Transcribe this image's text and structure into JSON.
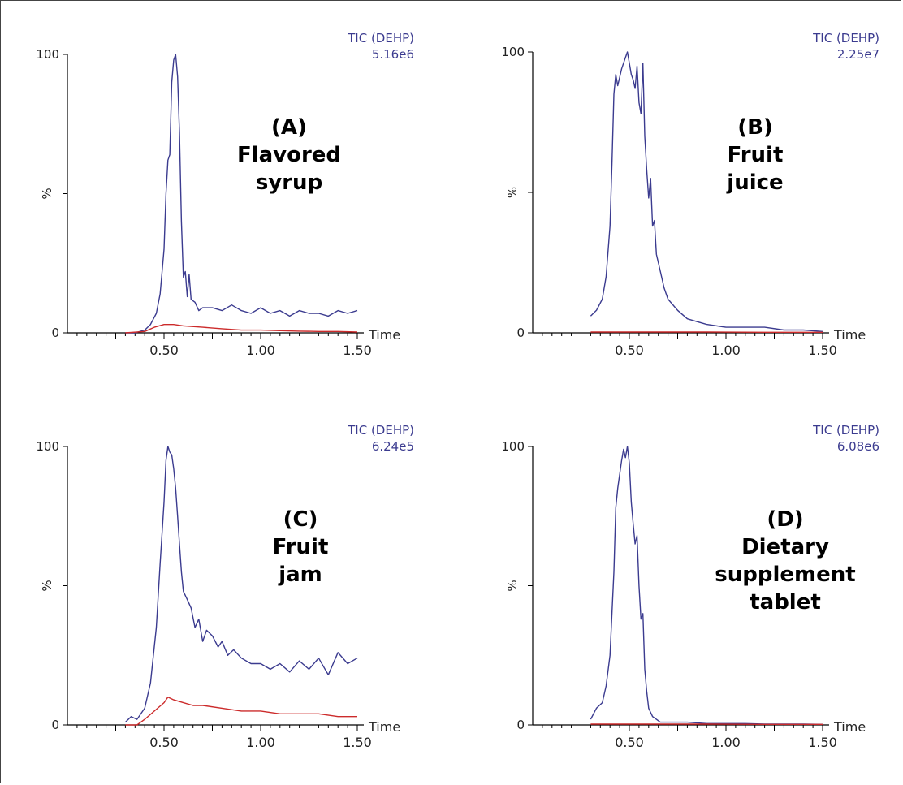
{
  "chart_data": [
    {
      "id": "A",
      "type": "line",
      "trace_label": "TIC (DEHP)",
      "intensity": "5.16e6",
      "caption": [
        "(A)",
        "Flavored",
        "syrup"
      ],
      "xlabel": "Time",
      "ylabel": "%",
      "xlim": [
        0.0,
        1.5
      ],
      "ylim": [
        0,
        100
      ],
      "xticks": [
        "0.50",
        "1.00",
        "1.50"
      ],
      "yticks": [
        "0",
        "100"
      ],
      "series": [
        {
          "color": "#3b3b8f",
          "x": [
            0.3,
            0.35,
            0.4,
            0.43,
            0.46,
            0.48,
            0.5,
            0.51,
            0.52,
            0.53,
            0.54,
            0.55,
            0.56,
            0.57,
            0.58,
            0.59,
            0.6,
            0.61,
            0.62,
            0.63,
            0.64,
            0.66,
            0.68,
            0.7,
            0.75,
            0.8,
            0.85,
            0.9,
            0.95,
            1.0,
            1.05,
            1.1,
            1.15,
            1.2,
            1.25,
            1.3,
            1.35,
            1.4,
            1.45,
            1.5
          ],
          "y": [
            0,
            0,
            1,
            3,
            7,
            14,
            30,
            50,
            62,
            64,
            90,
            98,
            100,
            92,
            72,
            40,
            20,
            22,
            13,
            21,
            12,
            11,
            8,
            9,
            9,
            8,
            10,
            8,
            7,
            9,
            7,
            8,
            6,
            8,
            7,
            7,
            6,
            8,
            7,
            8
          ]
        },
        {
          "color": "#cc2b2b",
          "x": [
            0.3,
            0.4,
            0.45,
            0.5,
            0.55,
            0.6,
            0.7,
            0.8,
            0.9,
            1.0,
            1.1,
            1.2,
            1.3,
            1.4,
            1.5
          ],
          "y": [
            0,
            0.5,
            2,
            3,
            3,
            2.5,
            2,
            1.5,
            1,
            1,
            0.8,
            0.6,
            0.5,
            0.5,
            0.3
          ]
        }
      ]
    },
    {
      "id": "B",
      "type": "line",
      "trace_label": "TIC (DEHP)",
      "intensity": "2.25e7",
      "caption": [
        "(B)",
        "Fruit",
        "juice"
      ],
      "xlabel": "Time",
      "ylabel": "%",
      "xlim": [
        0.0,
        1.5
      ],
      "ylim": [
        0,
        100
      ],
      "xticks": [
        "0.50",
        "1.00",
        "1.50"
      ],
      "yticks": [
        "0",
        "100"
      ],
      "series": [
        {
          "color": "#3b3b8f",
          "x": [
            0.3,
            0.33,
            0.36,
            0.38,
            0.4,
            0.41,
            0.42,
            0.43,
            0.44,
            0.46,
            0.48,
            0.49,
            0.5,
            0.51,
            0.52,
            0.53,
            0.54,
            0.55,
            0.56,
            0.57,
            0.58,
            0.59,
            0.6,
            0.61,
            0.62,
            0.63,
            0.64,
            0.66,
            0.68,
            0.7,
            0.75,
            0.8,
            0.85,
            0.9,
            1.0,
            1.1,
            1.2,
            1.3,
            1.4,
            1.5
          ],
          "y": [
            6,
            8,
            12,
            20,
            38,
            60,
            85,
            92,
            88,
            94,
            98,
            100,
            96,
            92,
            90,
            87,
            95,
            82,
            78,
            96,
            70,
            58,
            48,
            55,
            38,
            40,
            28,
            22,
            16,
            12,
            8,
            5,
            4,
            3,
            2,
            2,
            2,
            1,
            1,
            0.5
          ]
        },
        {
          "color": "#cc2b2b",
          "x": [
            0.3,
            0.6,
            0.9,
            1.2,
            1.5
          ],
          "y": [
            0.3,
            0.3,
            0.3,
            0.2,
            0.2
          ]
        }
      ]
    },
    {
      "id": "C",
      "type": "line",
      "trace_label": "TIC (DEHP)",
      "intensity": "6.24e5",
      "caption": [
        "(C)",
        "Fruit",
        "jam"
      ],
      "xlabel": "Time",
      "ylabel": "%",
      "xlim": [
        0.0,
        1.5
      ],
      "ylim": [
        0,
        100
      ],
      "xticks": [
        "0.50",
        "1.00",
        "1.50"
      ],
      "yticks": [
        "0",
        "100"
      ],
      "series": [
        {
          "color": "#3b3b8f",
          "x": [
            0.3,
            0.33,
            0.36,
            0.4,
            0.43,
            0.46,
            0.48,
            0.5,
            0.51,
            0.52,
            0.53,
            0.54,
            0.55,
            0.56,
            0.57,
            0.58,
            0.59,
            0.6,
            0.62,
            0.64,
            0.66,
            0.68,
            0.7,
            0.72,
            0.75,
            0.78,
            0.8,
            0.83,
            0.86,
            0.9,
            0.95,
            1.0,
            1.05,
            1.1,
            1.15,
            1.2,
            1.25,
            1.3,
            1.35,
            1.4,
            1.45,
            1.5
          ],
          "y": [
            1,
            3,
            2,
            6,
            15,
            35,
            58,
            80,
            95,
            100,
            98,
            97,
            92,
            85,
            75,
            65,
            55,
            48,
            45,
            42,
            35,
            38,
            30,
            34,
            32,
            28,
            30,
            25,
            27,
            24,
            22,
            22,
            20,
            22,
            19,
            23,
            20,
            24,
            18,
            26,
            22,
            24
          ]
        },
        {
          "color": "#cc2b2b",
          "x": [
            0.3,
            0.36,
            0.4,
            0.45,
            0.5,
            0.52,
            0.55,
            0.6,
            0.65,
            0.7,
            0.8,
            0.9,
            1.0,
            1.1,
            1.2,
            1.3,
            1.4,
            1.5
          ],
          "y": [
            0,
            0,
            2,
            5,
            8,
            10,
            9,
            8,
            7,
            7,
            6,
            5,
            5,
            4,
            4,
            4,
            3,
            3
          ]
        }
      ]
    },
    {
      "id": "D",
      "type": "line",
      "trace_label": "TIC (DEHP)",
      "intensity": "6.08e6",
      "caption": [
        "(D)",
        "Dietary",
        "supplement",
        "tablet"
      ],
      "xlabel": "Time",
      "ylabel": "%",
      "xlim": [
        0.0,
        1.5
      ],
      "ylim": [
        0,
        100
      ],
      "xticks": [
        "0.50",
        "1.00",
        "1.50"
      ],
      "yticks": [
        "0",
        "100"
      ],
      "series": [
        {
          "color": "#3b3b8f",
          "x": [
            0.3,
            0.33,
            0.36,
            0.38,
            0.4,
            0.42,
            0.43,
            0.44,
            0.45,
            0.46,
            0.47,
            0.48,
            0.49,
            0.5,
            0.51,
            0.52,
            0.53,
            0.54,
            0.55,
            0.56,
            0.57,
            0.58,
            0.59,
            0.6,
            0.62,
            0.64,
            0.66,
            0.7,
            0.8,
            0.9,
            1.0,
            1.1,
            1.2,
            1.3,
            1.4,
            1.5
          ],
          "y": [
            2,
            6,
            8,
            14,
            25,
            55,
            78,
            85,
            90,
            95,
            99,
            96,
            100,
            94,
            80,
            72,
            65,
            68,
            50,
            38,
            40,
            20,
            12,
            6,
            3,
            2,
            1,
            1,
            1,
            0.5,
            0.5,
            0.5,
            0.3,
            0.3,
            0.3,
            0.2
          ]
        },
        {
          "color": "#cc2b2b",
          "x": [
            0.3,
            0.6,
            0.9,
            1.2,
            1.5
          ],
          "y": [
            0.3,
            0.3,
            0.3,
            0.2,
            0.2
          ]
        }
      ]
    }
  ]
}
